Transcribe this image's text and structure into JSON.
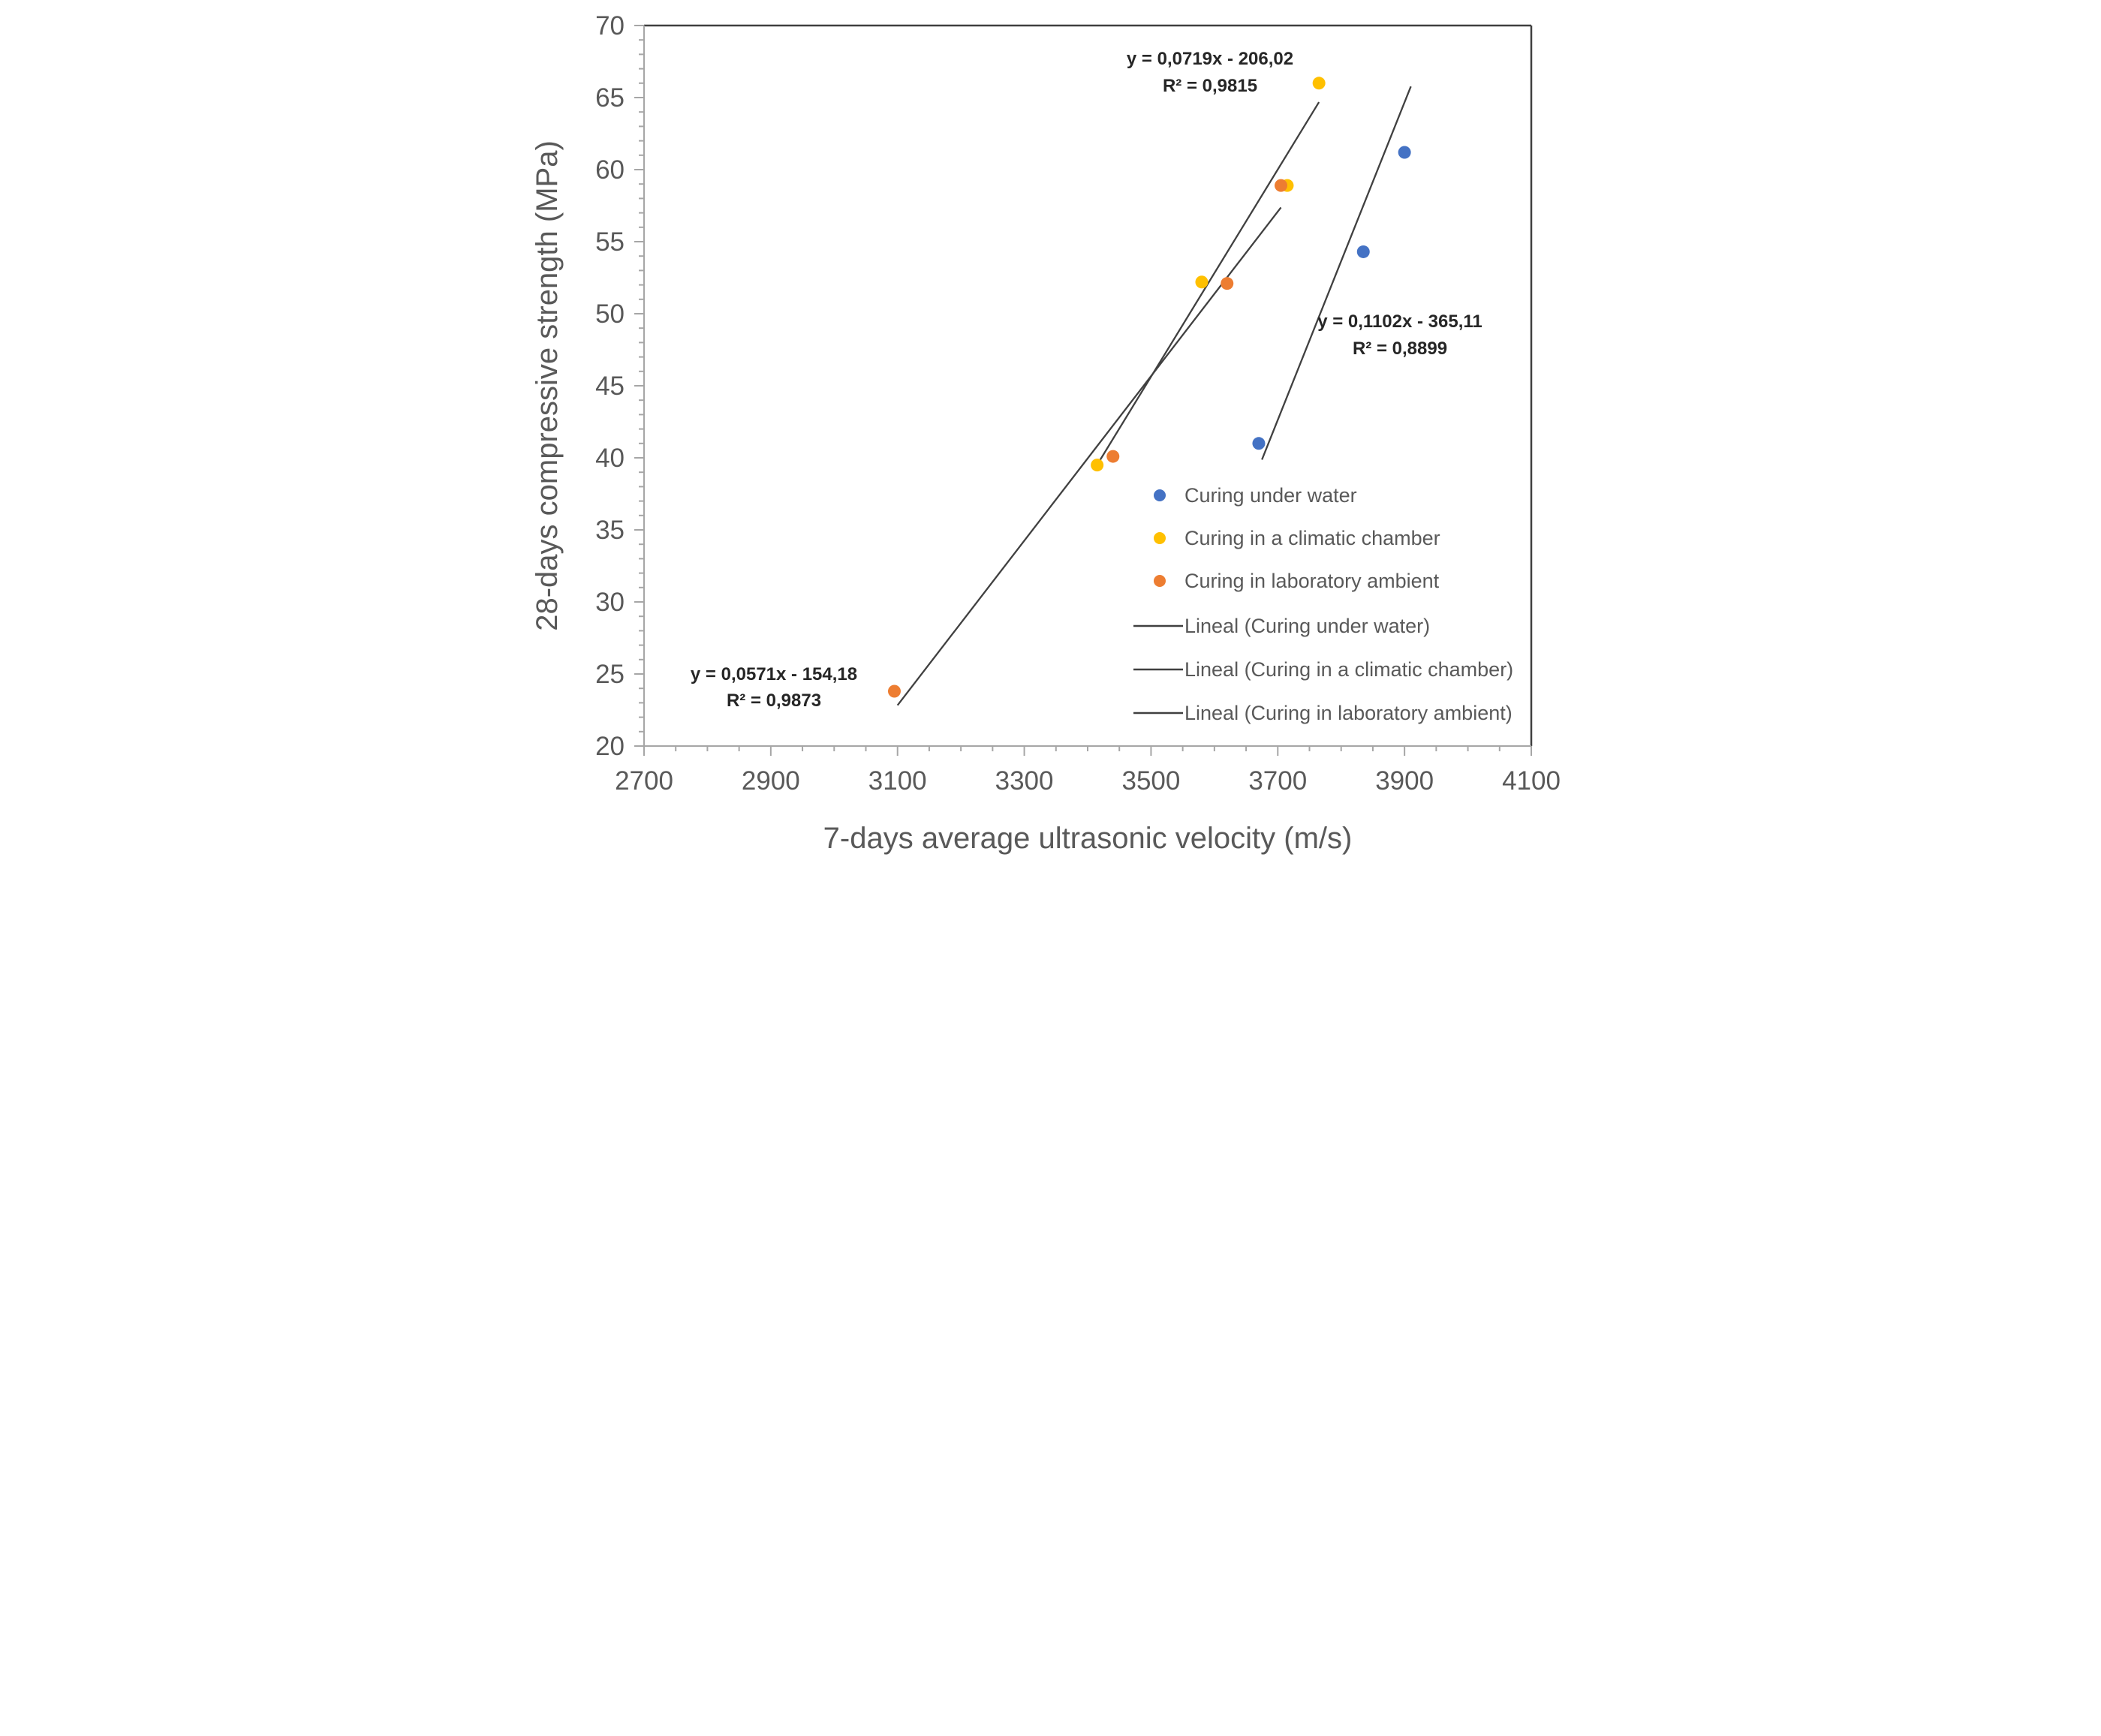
{
  "colors": {
    "background": "#FFFFFF",
    "axis_line": "#A6A6A6",
    "plot_border": "#3F3F3F",
    "trendline": "#404040",
    "tick_text": "#595959",
    "annotation_text": "#262626",
    "series_blue": "#4472C4",
    "series_yellow": "#FFC000",
    "series_orange": "#ED7D31"
  },
  "chart_data": {
    "type": "scatter",
    "title": "",
    "xlabel": "7-days average ultrasonic velocity (m/s)",
    "ylabel": "28-days compressive strength (MPa)",
    "xlim": [
      2700,
      4100
    ],
    "ylim": [
      20,
      70
    ],
    "x_ticks": [
      2700,
      2900,
      3100,
      3300,
      3500,
      3700,
      3900,
      4100
    ],
    "x_minor_step": 50,
    "y_ticks": [
      20,
      25,
      30,
      35,
      40,
      45,
      50,
      55,
      60,
      65,
      70
    ],
    "y_minor_step": 1,
    "grid": false,
    "legend_position": "inside-lower-right",
    "series": [
      {
        "name": "Curing under water",
        "color": "#4472C4",
        "marker": "circle",
        "points": [
          [
            3670,
            41.0
          ],
          [
            3835,
            54.3
          ],
          [
            3900,
            61.2
          ]
        ]
      },
      {
        "name": "Curing in a climatic chamber",
        "color": "#FFC000",
        "marker": "circle",
        "points": [
          [
            3415,
            39.5
          ],
          [
            3580,
            52.2
          ],
          [
            3715,
            58.9
          ],
          [
            3765,
            66.0
          ]
        ]
      },
      {
        "name": "Curing in laboratory ambient",
        "color": "#ED7D31",
        "marker": "circle",
        "points": [
          [
            3095,
            23.8
          ],
          [
            3440,
            40.1
          ],
          [
            3620,
            52.1
          ],
          [
            3705,
            58.9
          ]
        ]
      }
    ],
    "trendlines": [
      {
        "name": "Lineal (Curing under water)",
        "slope": 0.1102,
        "intercept": -365.11,
        "x_range": [
          3675,
          3910
        ],
        "equation_label": "y = 0,1102x - 365,11",
        "r2_label": "R² = 0,8899"
      },
      {
        "name": "Lineal (Curing in a climatic chamber)",
        "slope": 0.0719,
        "intercept": -206.02,
        "x_range": [
          3415,
          3765
        ],
        "equation_label": "y = 0,0719x - 206,02",
        "r2_label": "R² = 0,9815"
      },
      {
        "name": "Lineal (Curing in laboratory ambient)",
        "slope": 0.0571,
        "intercept": -154.18,
        "x_range": [
          3100,
          3705
        ],
        "equation_label": "y = 0,0571x - 154,18",
        "r2_label": "R² = 0,9873"
      }
    ],
    "legend_entries": [
      {
        "label": "Curing under water",
        "type": "marker",
        "color": "#4472C4"
      },
      {
        "label": "Curing in a climatic chamber",
        "type": "marker",
        "color": "#FFC000"
      },
      {
        "label": "Curing in laboratory ambient",
        "type": "marker",
        "color": "#ED7D31"
      },
      {
        "label": "Lineal (Curing under water)",
        "type": "line",
        "color": "#404040"
      },
      {
        "label": "Lineal (Curing in a climatic chamber)",
        "type": "line",
        "color": "#404040"
      },
      {
        "label": "Lineal (Curing in laboratory ambient)",
        "type": "line",
        "color": "#404040"
      }
    ]
  }
}
